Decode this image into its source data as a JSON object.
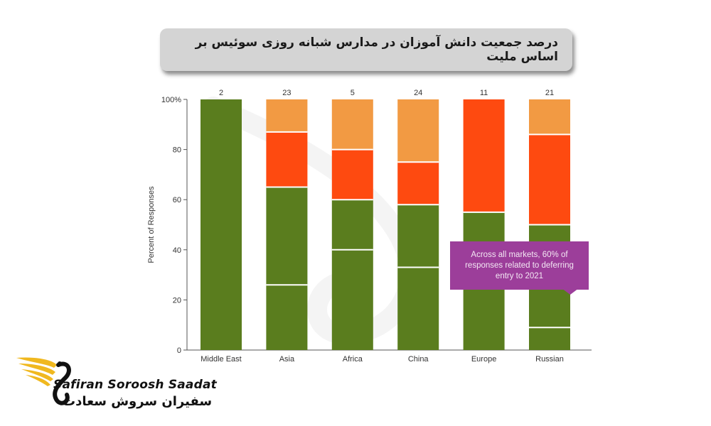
{
  "title": "درصد جمعیت دانش آموزان در مدارس شبانه روزی سوئیس بر اساس ملیت",
  "colors": {
    "green": "#5a7d1e",
    "red": "#fe4a10",
    "orange": "#f29a43",
    "divider": "#ffffff",
    "callout": "#9c3e9a"
  },
  "chart_data": {
    "type": "bar",
    "stacked": true,
    "ylabel": "Percent of Responses",
    "ylim": [
      0,
      100
    ],
    "yticks": [
      0,
      20,
      40,
      60,
      80,
      100
    ],
    "ytick_labels": [
      "0",
      "20",
      "40",
      "60",
      "80",
      "100%"
    ],
    "categories": [
      "Middle East",
      "Asia",
      "Africa",
      "China",
      "Europe",
      "Russian"
    ],
    "counts": [
      "2",
      "23",
      "5",
      "24",
      "11",
      "21"
    ],
    "segments": [
      [
        {
          "from": 0,
          "to": 100,
          "color": "green"
        }
      ],
      [
        {
          "from": 0,
          "to": 26,
          "color": "green"
        },
        {
          "from": 26,
          "to": 65,
          "color": "green"
        },
        {
          "from": 65,
          "to": 87,
          "color": "red"
        },
        {
          "from": 87,
          "to": 100,
          "color": "orange"
        }
      ],
      [
        {
          "from": 0,
          "to": 40,
          "color": "green"
        },
        {
          "from": 40,
          "to": 60,
          "color": "green"
        },
        {
          "from": 60,
          "to": 80,
          "color": "red"
        },
        {
          "from": 80,
          "to": 100,
          "color": "orange"
        }
      ],
      [
        {
          "from": 0,
          "to": 33,
          "color": "green"
        },
        {
          "from": 33,
          "to": 58,
          "color": "green"
        },
        {
          "from": 58,
          "to": 75,
          "color": "red"
        },
        {
          "from": 75,
          "to": 100,
          "color": "orange"
        }
      ],
      [
        {
          "from": 0,
          "to": 55,
          "color": "green"
        },
        {
          "from": 55,
          "to": 100,
          "color": "red"
        }
      ],
      [
        {
          "from": 0,
          "to": 9,
          "color": "green"
        },
        {
          "from": 9,
          "to": 50,
          "color": "green"
        },
        {
          "from": 50,
          "to": 86,
          "color": "red"
        },
        {
          "from": 86,
          "to": 100,
          "color": "orange"
        }
      ]
    ],
    "annotation": "Across all markets, 60% of responses related to deferring entry to 2021"
  },
  "logo": {
    "name_en": "Safiran Soroosh Saadat",
    "name_fa": "سفیران سروش سعادت"
  }
}
